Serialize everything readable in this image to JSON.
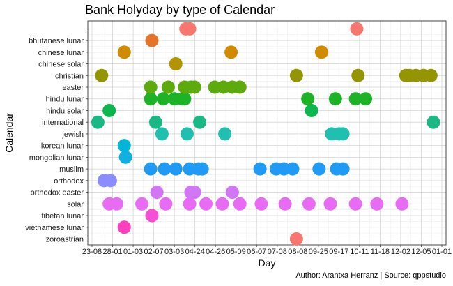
{
  "chart_data": {
    "type": "scatter",
    "title": "Bank Holyday by type of Calendar",
    "xlabel": "Day",
    "ylabel": "Calendar",
    "caption": "Author: Arantxa Herranz | Source: qppstudio",
    "grid": true,
    "legend": "none",
    "categories": [
      "zoroastrian",
      "vietnamese lunar",
      "tibetan lunar",
      "solar",
      "orthodox easter",
      "orthodox",
      "muslim",
      "mongolian lunar",
      "korean lunar",
      "jewish",
      "international",
      "hindu solar",
      "hindu lunar",
      "easter",
      "christian",
      "chinese solar",
      "chinese lunar",
      "bhutanese lunar",
      ""
    ],
    "x_ticks": [
      "23-08",
      "28-01",
      "01-03",
      "02-07",
      "03-03",
      "04-24",
      "04-26",
      "05-09",
      "06-07",
      "07-08",
      "08-08",
      "09-25",
      "09-17",
      "10-11",
      "11-18",
      "12-02",
      "12-05",
      "01-01"
    ],
    "x_range": [
      0.5,
      29.0
    ],
    "series": [
      {
        "category": "zoroastrian",
        "color": "#F8766D",
        "x": [
          17.1
        ]
      },
      {
        "category": "vietnamese lunar",
        "color": "#FF3EC0",
        "x": [
          3.4
        ]
      },
      {
        "category": "tibetan lunar",
        "color": "#F54FD5",
        "x": [
          5.6
        ]
      },
      {
        "category": "solar",
        "color": "#E76BF3",
        "x": [
          2.2,
          2.8,
          4.8,
          6.7,
          8.6,
          9.9,
          11.2,
          12.6,
          14.3,
          16.2,
          18.1,
          19.8,
          21.8,
          23.5,
          25.5
        ]
      },
      {
        "category": "orthodox easter",
        "color": "#D177F5",
        "x": [
          6.0,
          8.7,
          9.0,
          12.0
        ]
      },
      {
        "category": "orthodox",
        "color": "#8A8CFF",
        "x": [
          1.8,
          2.3
        ]
      },
      {
        "category": "muslim",
        "color": "#1F9AF5",
        "x": [
          5.5,
          6.6,
          7.5,
          8.6,
          9.3,
          9.6,
          14.2,
          15.5,
          16.1,
          16.8,
          18.9,
          20.3,
          20.8
        ]
      },
      {
        "category": "mongolian lunar",
        "color": "#10B1E0",
        "x": [
          3.5
        ]
      },
      {
        "category": "korean lunar",
        "color": "#00B5D8",
        "x": [
          3.4
        ]
      },
      {
        "category": "jewish",
        "color": "#1FC0B0",
        "x": [
          6.4,
          8.4,
          11.4,
          19.9,
          20.5,
          20.8
        ]
      },
      {
        "category": "international",
        "color": "#1AB884",
        "x": [
          1.3,
          5.9,
          9.4,
          28.0
        ]
      },
      {
        "category": "hindu solar",
        "color": "#0CB84D",
        "x": [
          2.2,
          18.3
        ]
      },
      {
        "category": "hindu lunar",
        "color": "#1CB426",
        "x": [
          5.5,
          6.5,
          7.4,
          8.0,
          8.2,
          18.0,
          20.2,
          21.8,
          22.6
        ]
      },
      {
        "category": "easter",
        "color": "#5CAA0C",
        "x": [
          5.5,
          6.9,
          8.2,
          8.7,
          9.0,
          10.6,
          11.3,
          12.0,
          12.6
        ]
      },
      {
        "category": "christian",
        "color": "#939600",
        "x": [
          1.6,
          17.1,
          22.0,
          25.8,
          26.1,
          26.6,
          27.2,
          27.8
        ]
      },
      {
        "category": "chinese solar",
        "color": "#B29400",
        "x": [
          7.5
        ]
      },
      {
        "category": "chinese lunar",
        "color": "#D08B00",
        "x": [
          3.4,
          11.9,
          19.1
        ]
      },
      {
        "category": "bhutanese lunar",
        "color": "#E3742A",
        "x": [
          5.6
        ]
      },
      {
        "category": "",
        "color": "#F8766D",
        "x": [
          8.3,
          8.6,
          21.9
        ]
      }
    ]
  }
}
